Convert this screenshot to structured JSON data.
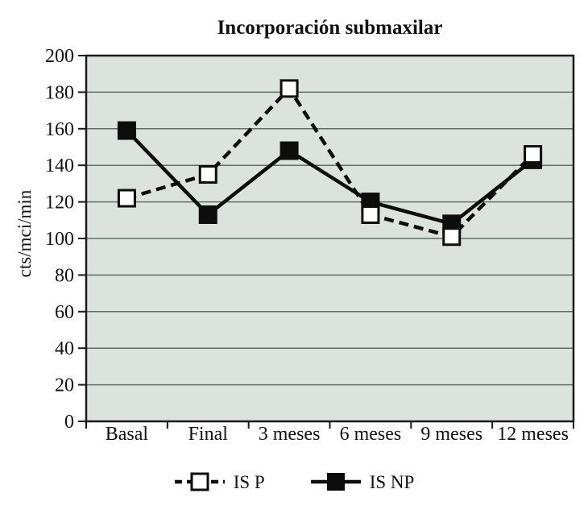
{
  "chart_data": {
    "type": "line",
    "title": "Incorporación submaxilar",
    "xlabel": "",
    "ylabel": "cts/mci/min",
    "categories": [
      "Basal",
      "Final",
      "3 meses",
      "6 meses",
      "9 meses",
      "12 meses"
    ],
    "series": [
      {
        "name": "IS P",
        "values": [
          122,
          135,
          182,
          113,
          101,
          146
        ],
        "line": "dashed",
        "marker": "white-square"
      },
      {
        "name": "IS NP",
        "values": [
          159,
          113,
          148,
          120,
          108,
          143
        ],
        "line": "solid",
        "marker": "black-square"
      }
    ],
    "ylim": [
      0,
      200
    ],
    "yticks": [
      0,
      20,
      40,
      60,
      80,
      100,
      120,
      140,
      160,
      180,
      200
    ],
    "grid": true,
    "legend_position": "bottom",
    "colors": {
      "plot_background": "#dce3df",
      "gridline": "#5c6e66",
      "axis": "#1a1a1a",
      "series": "#0d0d0d",
      "text": "#111111"
    }
  }
}
